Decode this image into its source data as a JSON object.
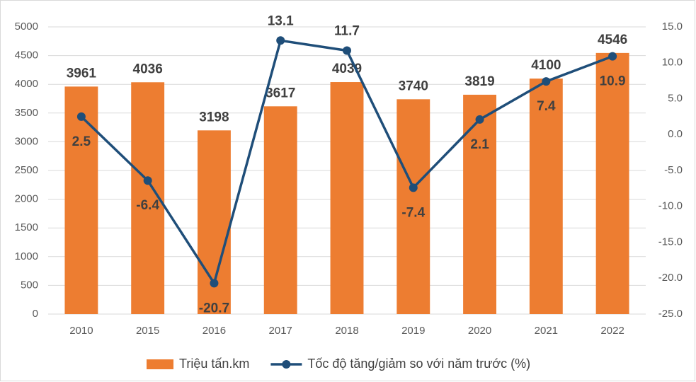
{
  "chart_data": {
    "type": "bar_line",
    "categories": [
      "2010",
      "2015",
      "2016",
      "2017",
      "2018",
      "2019",
      "2020",
      "2021",
      "2022"
    ],
    "series": [
      {
        "name": "Triệu tấn.km",
        "type": "bar",
        "color": "#ed7d31",
        "values": [
          3961,
          4036,
          3198,
          3617,
          4039,
          3740,
          3819,
          4100,
          4546
        ]
      },
      {
        "name": "Tốc độ tăng/giảm so với năm trước (%)",
        "type": "line",
        "axis": "y2",
        "color": "#1f4e79",
        "values": [
          2.5,
          -6.4,
          -20.7,
          13.1,
          11.7,
          -7.4,
          2.1,
          7.4,
          10.9
        ]
      }
    ],
    "ylim": [
      0,
      5000
    ],
    "yticks": [
      0,
      500,
      1000,
      1500,
      2000,
      2500,
      3000,
      3500,
      4000,
      4500,
      5000
    ],
    "y2lim": [
      -25,
      15
    ],
    "y2ticks": [
      {
        "value": -25,
        "label": "-25.0"
      },
      {
        "value": -20,
        "label": "-20.0"
      },
      {
        "value": -15,
        "label": "-15.0"
      },
      {
        "value": -10,
        "label": "-10.0"
      },
      {
        "value": -5,
        "label": "-5.0"
      },
      {
        "value": 0,
        "label": "0.0"
      },
      {
        "value": 5,
        "label": "5.0"
      },
      {
        "value": 10,
        "label": "10.0"
      },
      {
        "value": 15,
        "label": "15.0"
      }
    ],
    "grid": true,
    "legend": "bottom"
  }
}
